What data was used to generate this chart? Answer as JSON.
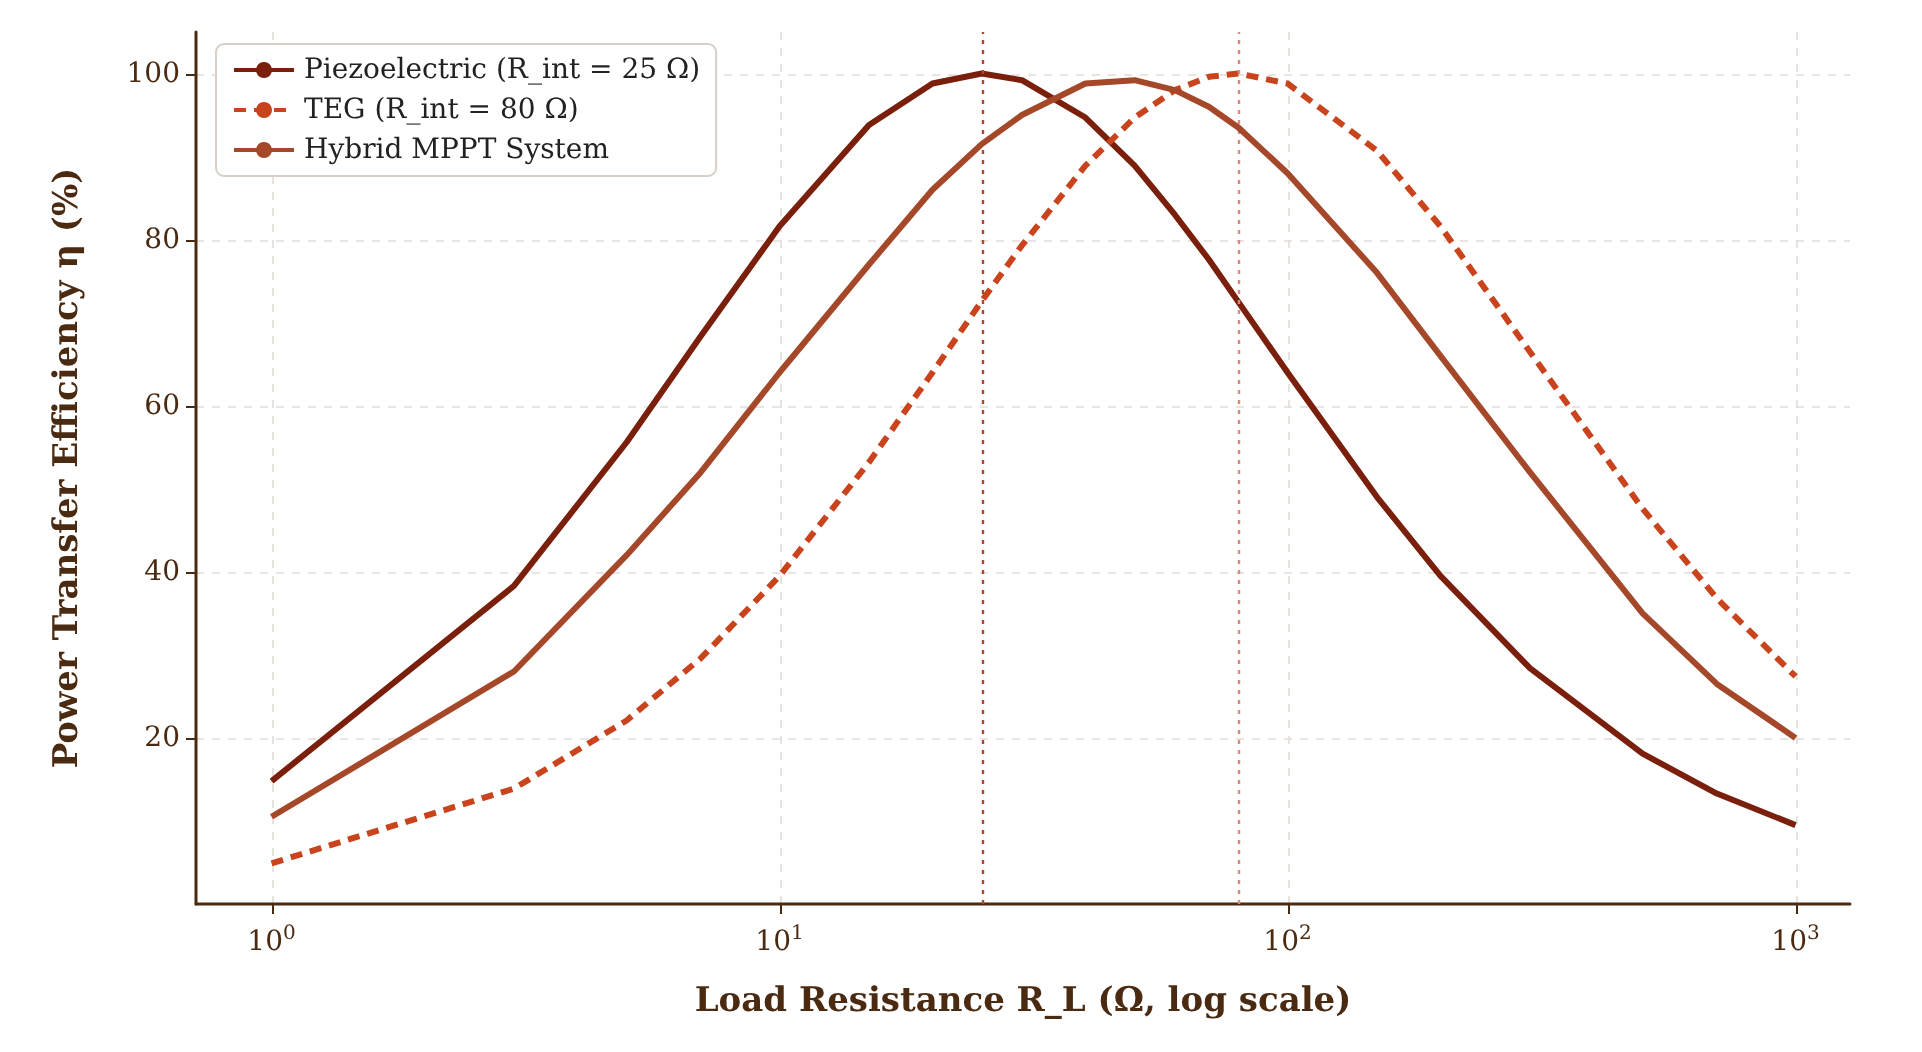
{
  "chart_data": {
    "type": "line",
    "xlabel": "Load Resistance R_L (Ω, log scale)",
    "ylabel": "Power Transfer Efficiency η (%)",
    "x": [
      1,
      3,
      5,
      7,
      10,
      15,
      20,
      25,
      30,
      40,
      50,
      60,
      70,
      80,
      100,
      150,
      200,
      300,
      500,
      700,
      1000
    ],
    "series": [
      {
        "name": "Piezoelectric (R_int = 25 Ω)",
        "color": "#7a1f0c",
        "line_style": "solid",
        "values": [
          14.8,
          38.3,
          55.6,
          68.4,
          81.6,
          93.8,
          98.8,
          100,
          99.2,
          94.7,
          88.9,
          83.0,
          77.6,
          72.5,
          64.0,
          49.0,
          39.5,
          28.4,
          18.1,
          13.3,
          9.5
        ]
      },
      {
        "name": "TEG (R_int = 80 Ω)",
        "color": "#c9441c",
        "line_style": "dashed",
        "values": [
          4.9,
          13.9,
          22.1,
          29.6,
          39.5,
          53.2,
          64.0,
          72.6,
          79.3,
          88.9,
          94.7,
          98.0,
          99.6,
          100,
          98.8,
          90.7,
          81.6,
          66.5,
          47.6,
          36.8,
          27.4
        ]
      },
      {
        "name": "Hybrid MPPT System",
        "color": "#a5482a",
        "line_style": "solid",
        "values": [
          10.5,
          28,
          42,
          52,
          64,
          77,
          86,
          91.5,
          95,
          98.8,
          99.2,
          98,
          96,
          93.5,
          88,
          76,
          66,
          52,
          35,
          26.5,
          20
        ]
      }
    ],
    "log": "x",
    "xlim": [
      0.71,
      1280
    ],
    "ylim": [
      0,
      105
    ],
    "xticks": [
      {
        "value": 1,
        "label": "10$^{0}$"
      },
      {
        "value": 10,
        "label": "10$^{1}$"
      },
      {
        "value": 100,
        "label": "10$^{2}$"
      },
      {
        "value": 1000,
        "label": "10$^{3}$"
      }
    ],
    "yticks": [
      20,
      40,
      60,
      80,
      100
    ],
    "ref_lines": [
      {
        "axis": "x",
        "value": 25,
        "color": "#b0452e",
        "line_style": "dotted"
      },
      {
        "axis": "x",
        "value": 80,
        "color": "#d98a78",
        "line_style": "dotted"
      }
    ],
    "grid": true,
    "legend": "top left",
    "marker": "none"
  }
}
